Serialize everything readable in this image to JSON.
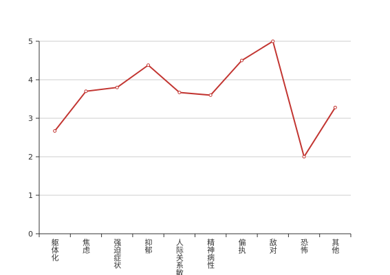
{
  "chart_data": {
    "type": "line",
    "categories": [
      "躯体化",
      "焦虑",
      "强迫症状",
      "抑郁",
      "人际关系敏感",
      "精神病性",
      "偏执",
      "敌对",
      "恐怖",
      "其他"
    ],
    "values": [
      2.67,
      3.7,
      3.8,
      4.38,
      3.67,
      3.6,
      4.5,
      5.0,
      2.0,
      3.28
    ],
    "color": "#c23531",
    "ylim": [
      0,
      5
    ],
    "yticks": [
      0,
      1,
      2,
      3,
      4,
      5
    ],
    "grid": true
  }
}
